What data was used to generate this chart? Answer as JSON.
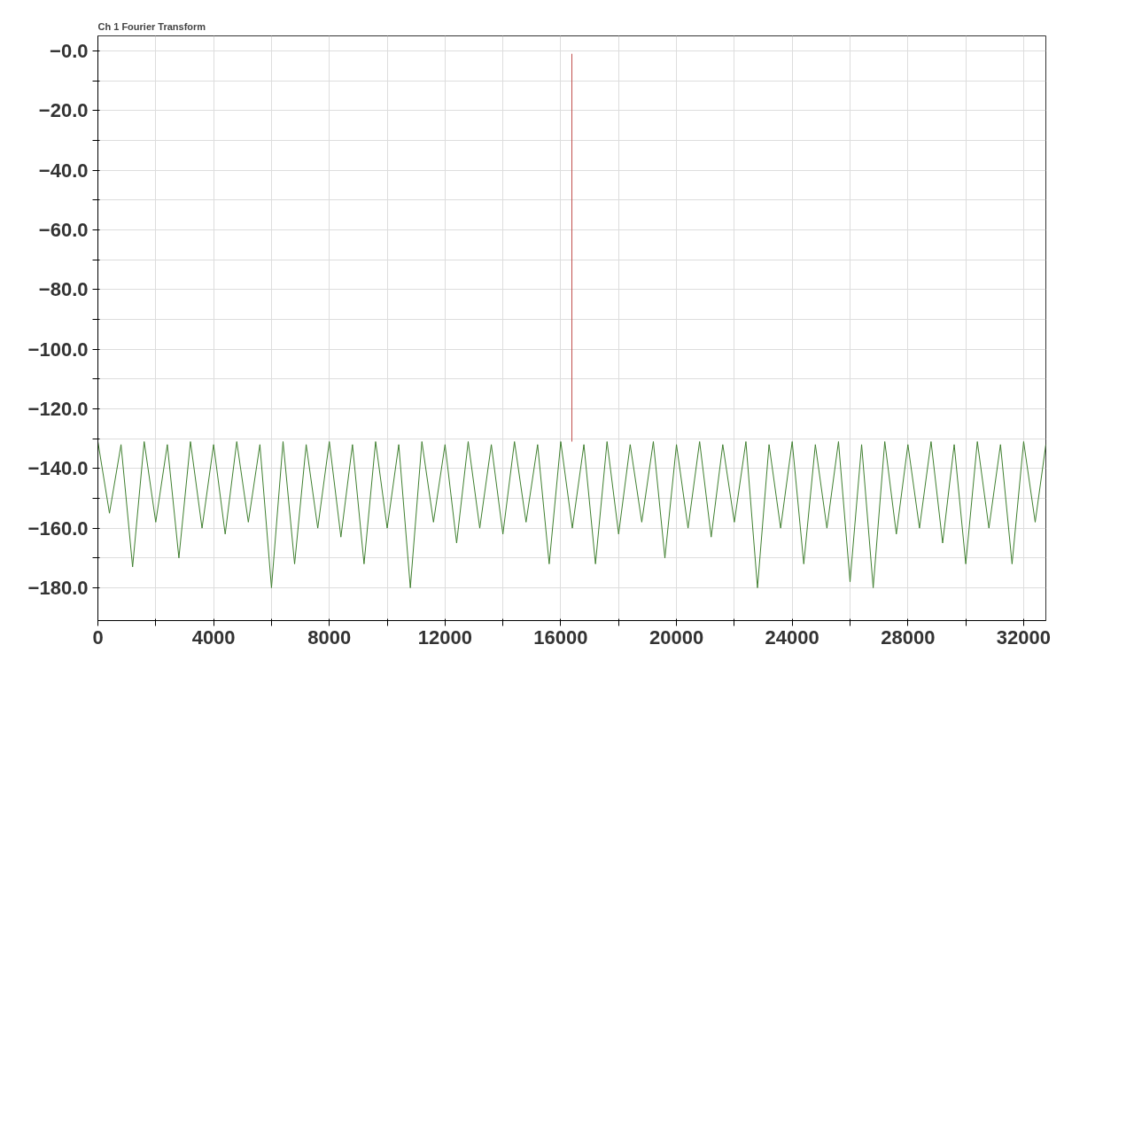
{
  "chart_data": {
    "type": "line",
    "title": "Ch 1 Fourier Transform",
    "xlim": [
      0,
      32768
    ],
    "ylim": [
      -191,
      5
    ],
    "xticks": [
      0,
      {
        "value": 2000,
        "label": null
      },
      4000,
      {
        "value": 6000,
        "label": null
      },
      8000,
      {
        "value": 10000,
        "label": null
      },
      12000,
      {
        "value": 14000,
        "label": null
      },
      16000,
      {
        "value": 18000,
        "label": null
      },
      20000,
      {
        "value": 22000,
        "label": null
      },
      24000,
      {
        "value": 26000,
        "label": null
      },
      28000,
      {
        "value": 30000,
        "label": null
      },
      32000
    ],
    "yticks": [
      {
        "value": 0,
        "label": "−0.0"
      },
      {
        "value": -10,
        "label": null
      },
      {
        "value": -20,
        "label": "−20.0"
      },
      {
        "value": -30,
        "label": null
      },
      {
        "value": -40,
        "label": "−40.0"
      },
      {
        "value": -50,
        "label": null
      },
      {
        "value": -60,
        "label": "−60.0"
      },
      {
        "value": -70,
        "label": null
      },
      {
        "value": -80,
        "label": "−80.0"
      },
      {
        "value": -90,
        "label": null
      },
      {
        "value": -100,
        "label": "−100.0"
      },
      {
        "value": -110,
        "label": null
      },
      {
        "value": -120,
        "label": "−120.0"
      },
      {
        "value": -130,
        "label": null
      },
      {
        "value": -140,
        "label": "−140.0"
      },
      {
        "value": -150,
        "label": null
      },
      {
        "value": -160,
        "label": "−160.0"
      },
      {
        "value": -170,
        "label": null
      },
      {
        "value": -180,
        "label": "−180.0"
      }
    ],
    "grid": true,
    "series": [
      {
        "color": "#3f7f2f",
        "x": [
          0,
          400,
          800,
          1200,
          1600,
          2000,
          2400,
          2800,
          3200,
          3600,
          4000,
          4400,
          4800,
          5200,
          5600,
          6000,
          6400,
          6800,
          7200,
          7600,
          8000,
          8400,
          8800,
          9200,
          9600,
          10000,
          10400,
          10800,
          11200,
          11600,
          12000,
          12400,
          12800,
          13200,
          13600,
          14000,
          14400,
          14800,
          15200,
          15600,
          16000,
          16400,
          16800,
          17200,
          17600,
          18000,
          18400,
          18800,
          19200,
          19600,
          20000,
          20400,
          20800,
          21200,
          21600,
          22000,
          22400,
          22800,
          23200,
          23600,
          24000,
          24400,
          24800,
          25200,
          25600,
          26000,
          26400,
          26800,
          27200,
          27600,
          28000,
          28400,
          28800,
          29200,
          29600,
          30000,
          30400,
          30800,
          31200,
          31600,
          32000,
          32400,
          32768
        ],
        "values": [
          -131,
          -155,
          -132,
          -173,
          -131,
          -158,
          -132,
          -170,
          -131,
          -160,
          -132,
          -162,
          -131,
          -158,
          -132,
          -180,
          -131,
          -172,
          -132,
          -160,
          -131,
          -163,
          -132,
          -172,
          -131,
          -160,
          -132,
          -180,
          -131,
          -158,
          -132,
          -165,
          -131,
          -160,
          -132,
          -162,
          -131,
          -158,
          -132,
          -172,
          -131,
          -160,
          -132,
          -172,
          -131,
          -162,
          -132,
          -158,
          -131,
          -170,
          -132,
          -160,
          -131,
          -163,
          -132,
          -158,
          -131,
          -180,
          -132,
          -160,
          -131,
          -172,
          -132,
          -160,
          -131,
          -178,
          -132,
          -180,
          -131,
          -162,
          -132,
          -160,
          -131,
          -165,
          -132,
          -172,
          -131,
          -160,
          -132,
          -172,
          -131,
          -158,
          -132
        ]
      },
      {
        "type": "line",
        "color": "#c0504d",
        "x": [
          16384,
          16384
        ],
        "values": [
          -1,
          -131
        ]
      }
    ]
  }
}
